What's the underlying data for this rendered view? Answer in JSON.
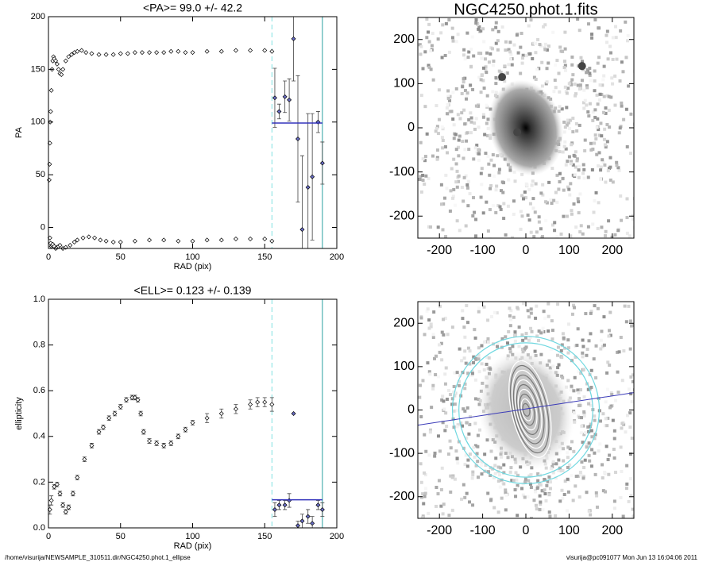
{
  "chart_data": [
    {
      "type": "scatter",
      "title": "<PA>=  99.0 +/-  42.2",
      "x_label": "RAD (pix)",
      "y_label": "PA",
      "xlim": [
        0,
        200
      ],
      "xticks": [
        0,
        50,
        100,
        150,
        200
      ],
      "ylim": [
        -20,
        200
      ],
      "yticks": [
        0,
        50,
        100,
        150,
        200
      ],
      "series": [
        {
          "color": "#000000",
          "x": [
            0.5,
            0.8,
            1,
            1.2,
            1.5,
            2,
            2.5,
            3,
            3.5,
            4,
            5,
            6,
            7,
            8,
            9,
            10,
            12,
            14,
            16,
            18,
            20,
            23,
            26,
            30,
            35,
            40,
            45,
            50,
            55,
            60,
            65,
            70,
            75,
            80,
            85,
            90,
            95,
            100,
            110,
            120,
            130,
            140,
            150,
            155
          ],
          "values": [
            45,
            60,
            80,
            100,
            110,
            130,
            150,
            158,
            162,
            160,
            158,
            155,
            150,
            146,
            145,
            150,
            158,
            162,
            164,
            166,
            167,
            168,
            166,
            165,
            164,
            164,
            164,
            165,
            165,
            166,
            166,
            166,
            166,
            166,
            167,
            167,
            166,
            166,
            167,
            167,
            168,
            168,
            168,
            167
          ]
        },
        {
          "color": "#000000",
          "x": [
            1,
            1.5,
            2,
            2.5,
            3,
            4,
            5,
            6,
            7,
            8,
            10,
            12,
            15,
            18,
            20,
            24,
            28,
            32,
            36,
            40,
            45,
            50,
            60,
            70,
            80,
            90,
            100,
            110,
            120,
            130,
            140,
            150,
            155
          ],
          "values": [
            -10,
            -15,
            -18,
            -17,
            -16,
            -18,
            -20,
            -19,
            -18,
            -17,
            -20,
            -19,
            -17,
            -14,
            -12,
            -10,
            -9,
            -10,
            -12,
            -13,
            -14,
            -14,
            -13,
            -12,
            -12,
            -13,
            -13,
            -12,
            -12,
            -11,
            -11,
            -11,
            -13
          ]
        },
        {
          "color": "#6a6fc8",
          "x": [
            157,
            160,
            164,
            167,
            170,
            173,
            176,
            180,
            183,
            187,
            190
          ],
          "values": [
            123,
            110,
            124,
            121,
            179,
            84,
            -2,
            38,
            48,
            100,
            61
          ],
          "errors": [
            28,
            7,
            15,
            20,
            40,
            60,
            70,
            70,
            60,
            10,
            20
          ]
        }
      ],
      "mean_line": {
        "value": 99.0,
        "x": [
          155,
          190
        ],
        "color": "#3333bb"
      },
      "vlines": [
        {
          "value": 155,
          "style": "dashed",
          "color": "#7fe0e0"
        },
        {
          "value": 190,
          "style": "solid",
          "color": "#2aa0a0"
        }
      ]
    },
    {
      "type": "scatter",
      "title": "<ELL>= 0.123 +/-  0.139",
      "x_label": "RAD (pix)",
      "y_label": "ellipticity",
      "xlim": [
        0,
        200
      ],
      "xticks": [
        0,
        50,
        100,
        150,
        200
      ],
      "ylim": [
        0,
        1
      ],
      "yticks": [
        {
          "value": 0,
          "label": "0.0"
        },
        0.2,
        0.4,
        0.6,
        0.8,
        {
          "value": 1,
          "label": "1.0"
        }
      ],
      "series": [
        {
          "color": "#000000",
          "x": [
            1,
            2,
            4,
            6,
            8,
            10,
            12,
            14,
            17,
            20,
            25,
            30,
            35,
            38,
            42,
            46,
            50,
            54,
            58,
            60,
            62,
            64,
            66,
            70,
            75,
            80,
            85,
            90,
            95,
            100,
            110,
            120,
            130,
            140,
            145,
            150,
            155
          ],
          "values": [
            0.08,
            0.12,
            0.18,
            0.19,
            0.15,
            0.1,
            0.07,
            0.09,
            0.15,
            0.22,
            0.3,
            0.36,
            0.42,
            0.44,
            0.48,
            0.5,
            0.53,
            0.56,
            0.57,
            0.57,
            0.56,
            0.5,
            0.42,
            0.38,
            0.37,
            0.36,
            0.37,
            0.4,
            0.43,
            0.46,
            0.48,
            0.5,
            0.52,
            0.54,
            0.55,
            0.55,
            0.54
          ],
          "errors": [
            0.02,
            0.02,
            0.01,
            0.01,
            0.01,
            0.01,
            0.01,
            0.01,
            0.01,
            0.01,
            0.01,
            0.01,
            0.01,
            0.01,
            0.01,
            0.01,
            0.01,
            0.01,
            0.01,
            0.01,
            0.01,
            0.01,
            0.01,
            0.01,
            0.01,
            0.01,
            0.01,
            0.01,
            0.01,
            0.01,
            0.02,
            0.02,
            0.02,
            0.02,
            0.02,
            0.02,
            0.03
          ]
        },
        {
          "color": "#6a6fc8",
          "x": [
            157,
            160,
            164,
            167,
            170,
            173,
            176,
            180,
            183,
            187,
            190
          ],
          "values": [
            0.08,
            0.1,
            0.1,
            0.12,
            0.5,
            0.01,
            0.03,
            0.05,
            0.02,
            0.1,
            0.08
          ],
          "errors": [
            0.03,
            0.02,
            0.02,
            0.03,
            0,
            0.02,
            0.03,
            0.03,
            0.03,
            0.02,
            0.03
          ]
        }
      ],
      "mean_line": {
        "value": 0.123,
        "x": [
          155,
          190
        ],
        "color": "#3333bb"
      },
      "vlines": [
        {
          "value": 155,
          "style": "dashed",
          "color": "#7fe0e0"
        },
        {
          "value": 190,
          "style": "solid",
          "color": "#2aa0a0"
        }
      ]
    },
    {
      "type": "image",
      "title": "NGC4250.phot.1.fits",
      "xlim": [
        -250,
        250
      ],
      "xticks": [
        -200,
        -100,
        0,
        100,
        200
      ],
      "ylim": [
        -250,
        250
      ],
      "yticks": [
        -200,
        -100,
        0,
        100,
        200
      ],
      "overlay": false
    },
    {
      "type": "image",
      "xlim": [
        -250,
        250
      ],
      "xticks": [
        -200,
        -100,
        0,
        100,
        200
      ],
      "ylim": [
        -250,
        250
      ],
      "yticks": [
        -200,
        -100,
        0,
        100,
        200
      ],
      "overlay": true
    }
  ],
  "footer": {
    "left": "/home/visurija/NEWSAMPLE_310511.dir/NGC4250.phot.1_ellipse",
    "right": "visurija@pc091077  Mon Jun 13 16:04:06 2011"
  }
}
